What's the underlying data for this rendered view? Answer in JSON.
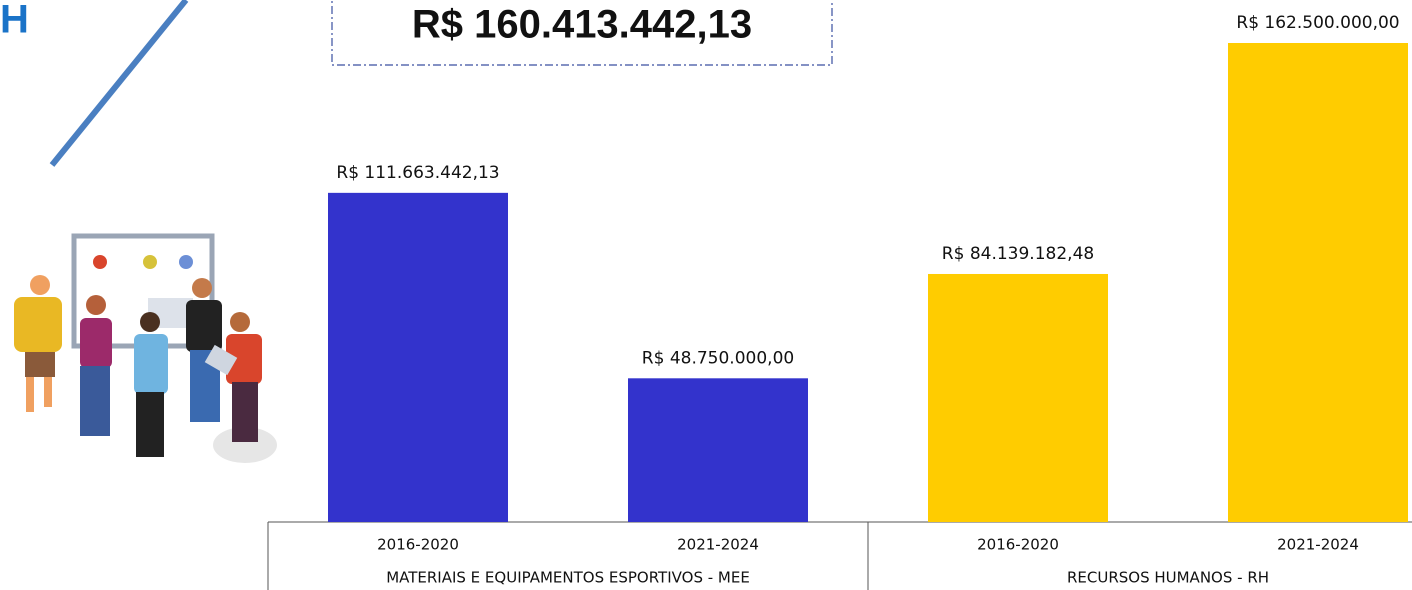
{
  "header": "H",
  "chart_data": {
    "type": "bar",
    "total_label": "R$ 160.413.442,13",
    "groups": [
      {
        "name": "MATERIAIS E EQUIPAMENTOS ESPORTIVOS - MEE",
        "color": "#3333cc",
        "categories": [
          "2016-2020",
          "2021-2024"
        ],
        "values": [
          111663442.13,
          48750000.0
        ],
        "value_labels": [
          "R$ 111.663.442,13",
          "R$ 48.750.000,00"
        ]
      },
      {
        "name": "RECURSOS HUMANOS - RH",
        "color": "#ffcc00",
        "categories": [
          "2016-2020",
          "2021-2024"
        ],
        "values": [
          84139182.48,
          162500000.0
        ],
        "value_labels": [
          "R$ 84.139.182,48",
          "R$ 162.500.000,00"
        ]
      }
    ]
  }
}
